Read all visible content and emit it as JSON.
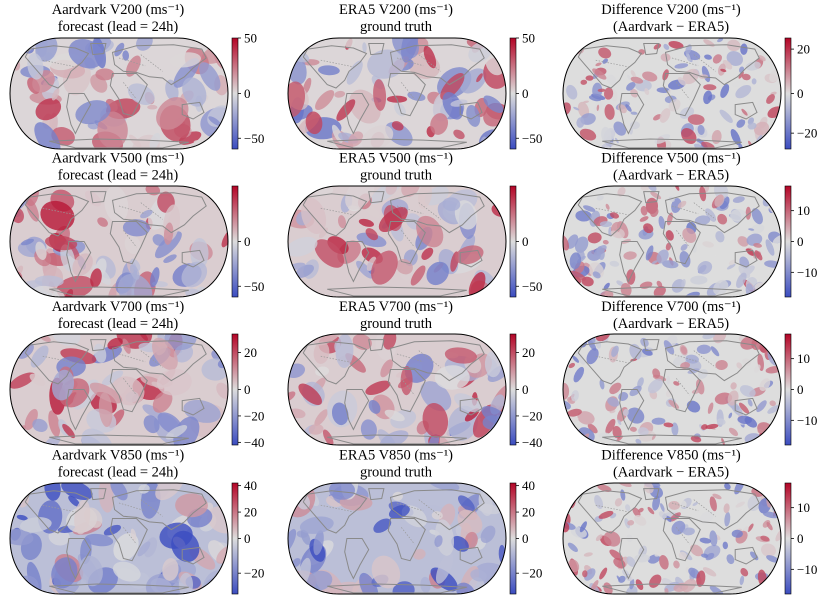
{
  "figure": {
    "colormap": {
      "negative": "#3b4cc0",
      "neutral": "#dddddd",
      "positive": "#b40426"
    },
    "land_outline_color": "#8a8a8a",
    "border_color": "#9a9a9a",
    "map_edge_color": "#000000"
  },
  "chart_data": [
    {
      "type": "heatmap",
      "row": "V200",
      "column": "forecast",
      "title": [
        "Aardvark V200 (ms⁻¹)",
        "forecast (lead = 24h)"
      ],
      "colorbar": {
        "vmin": -62,
        "vmax": 50,
        "ticks": [
          50,
          0,
          -50
        ]
      }
    },
    {
      "type": "heatmap",
      "row": "V200",
      "column": "truth",
      "title": [
        "ERA5 V200 (ms⁻¹)",
        "ground truth"
      ],
      "colorbar": {
        "vmin": -62,
        "vmax": 50,
        "ticks": [
          50,
          0,
          -50
        ]
      }
    },
    {
      "type": "heatmap",
      "row": "V200",
      "column": "difference",
      "title": [
        "Difference V200 (ms⁻¹)",
        "(Aardvark − ERA5)"
      ],
      "colorbar": {
        "vmin": -28,
        "vmax": 25,
        "ticks": [
          20,
          0,
          -20
        ]
      }
    },
    {
      "type": "heatmap",
      "row": "V500",
      "column": "forecast",
      "title": [
        "Aardvark V500 (ms⁻¹)",
        "forecast (lead = 24h)"
      ],
      "colorbar": {
        "vmin": -62,
        "vmax": 50,
        "ticks": [
          0,
          -50
        ]
      }
    },
    {
      "type": "heatmap",
      "row": "V500",
      "column": "truth",
      "title": [
        "ERA5 V500 (ms⁻¹)",
        "ground truth"
      ],
      "colorbar": {
        "vmin": -62,
        "vmax": 50,
        "ticks": [
          0,
          -50
        ]
      }
    },
    {
      "type": "heatmap",
      "row": "V500",
      "column": "difference",
      "title": [
        "Difference V500 (ms⁻¹)",
        "(Aardvark − ERA5)"
      ],
      "colorbar": {
        "vmin": -18,
        "vmax": 18,
        "ticks": [
          10,
          0,
          -10
        ]
      }
    },
    {
      "type": "heatmap",
      "row": "V700",
      "column": "forecast",
      "title": [
        "Aardvark V700 (ms⁻¹)",
        "forecast (lead = 24h)"
      ],
      "colorbar": {
        "vmin": -42,
        "vmax": 30,
        "ticks": [
          20,
          0,
          -20,
          -40
        ]
      }
    },
    {
      "type": "heatmap",
      "row": "V700",
      "column": "truth",
      "title": [
        "ERA5 V700 (ms⁻¹)",
        "ground truth"
      ],
      "colorbar": {
        "vmin": -42,
        "vmax": 30,
        "ticks": [
          20,
          0,
          -20,
          -40
        ]
      }
    },
    {
      "type": "heatmap",
      "row": "V700",
      "column": "difference",
      "title": [
        "Difference V700 (ms⁻¹)",
        "(Aardvark − ERA5)"
      ],
      "colorbar": {
        "vmin": -18,
        "vmax": 18,
        "ticks": [
          10,
          0,
          -10
        ]
      }
    },
    {
      "type": "heatmap",
      "row": "V850",
      "column": "forecast",
      "title": [
        "Aardvark V850 (ms⁻¹)",
        "forecast (lead = 24h)"
      ],
      "colorbar": {
        "vmin": -32,
        "vmax": 42,
        "ticks": [
          40,
          20,
          0,
          -20
        ]
      }
    },
    {
      "type": "heatmap",
      "row": "V850",
      "column": "truth",
      "title": [
        "ERA5 V850 (ms⁻¹)",
        "ground truth"
      ],
      "colorbar": {
        "vmin": -32,
        "vmax": 42,
        "ticks": [
          40,
          20,
          0,
          -20
        ]
      }
    },
    {
      "type": "heatmap",
      "row": "V850",
      "column": "difference",
      "title": [
        "Difference V850 (ms⁻¹)",
        "(Aardvark − ERA5)"
      ],
      "colorbar": {
        "vmin": -18,
        "vmax": 18,
        "ticks": [
          10,
          0,
          -10
        ]
      }
    }
  ]
}
